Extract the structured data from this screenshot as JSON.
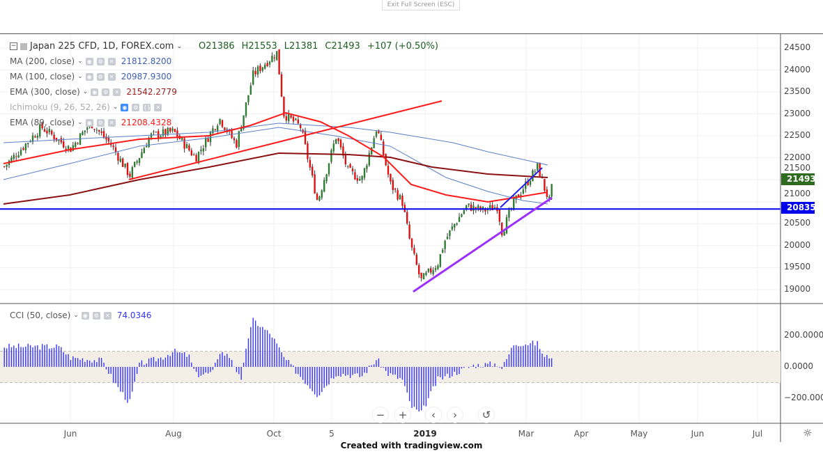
{
  "top": {
    "exit_fullscreen": "Exit Full Screen (ESC)"
  },
  "header": {
    "symbol": "Japan 225 CFD, 1D, FOREX.com",
    "open": "O21386",
    "high": "H21553",
    "low": "L21381",
    "close": "C21493",
    "change": "+107 (+0.50%)"
  },
  "indicators": [
    {
      "name": "MA (200, close)",
      "value": "21812.8200",
      "color": "#3d5fb5"
    },
    {
      "name": "MA (100, close)",
      "value": "20987.9300",
      "color": "#3d5fb5"
    },
    {
      "name": "EMA (300, close)",
      "value": "21542.2779",
      "color": "#9b1c1c"
    },
    {
      "name": "Ichimoku (9, 26, 52, 26)",
      "value": "",
      "color": "#aaaaaa"
    },
    {
      "name": "EMA (89, close)",
      "value": "21208.4328",
      "color": "#ff1a1a"
    }
  ],
  "cci": {
    "name": "CCI (50, close)",
    "value": "74.0346",
    "color": "#3333ff"
  },
  "footer": {
    "credit": "Created with tradingview.com"
  },
  "chart_data": [
    {
      "type": "candlestick",
      "title": "Japan 225 CFD, 1D, FOREX.com",
      "ylim": [
        18800,
        24700
      ],
      "y_ticks": [
        "24500",
        "24000",
        "23500",
        "23000",
        "22500",
        "22000",
        "21500",
        "21000",
        "20500",
        "20000",
        "19500",
        "19000"
      ],
      "x_ticks": [
        "Jun",
        "Aug",
        "Oct",
        "5",
        "2019",
        "Mar",
        "Apr",
        "May",
        "Jun",
        "Jul"
      ],
      "last_price": "21493",
      "horizontal_level": "20835",
      "up_color": "#2e7d32",
      "down_color": "#e01010",
      "closes": [
        [
          "2018-04-23",
          21800
        ],
        [
          "2018-05-15",
          22700
        ],
        [
          "2018-06-01",
          22200
        ],
        [
          "2018-06-13",
          22800
        ],
        [
          "2018-06-25",
          22300
        ],
        [
          "2018-07-06",
          21600
        ],
        [
          "2018-07-18",
          22500
        ],
        [
          "2018-08-01",
          22600
        ],
        [
          "2018-08-14",
          22000
        ],
        [
          "2018-08-28",
          22900
        ],
        [
          "2018-09-07",
          22300
        ],
        [
          "2018-09-17",
          23900
        ],
        [
          "2018-10-01",
          24400
        ],
        [
          "2018-10-05",
          23000
        ],
        [
          "2018-10-15",
          22700
        ],
        [
          "2018-10-25",
          21000
        ],
        [
          "2018-11-05",
          22500
        ],
        [
          "2018-11-12",
          21700
        ],
        [
          "2018-11-20",
          21500
        ],
        [
          "2018-11-29",
          22700
        ],
        [
          "2018-12-07",
          21400
        ],
        [
          "2018-12-14",
          21000
        ],
        [
          "2018-12-19",
          20000
        ],
        [
          "2018-12-25",
          19200
        ],
        [
          "2019-01-04",
          19600
        ],
        [
          "2019-01-08",
          20100
        ],
        [
          "2019-01-14",
          20500
        ],
        [
          "2019-01-21",
          20900
        ],
        [
          "2019-01-31",
          20800
        ],
        [
          "2019-02-08",
          20900
        ],
        [
          "2019-02-11",
          20300
        ],
        [
          "2019-02-18",
          21000
        ],
        [
          "2019-02-25",
          21400
        ],
        [
          "2019-03-04",
          21800
        ],
        [
          "2019-03-08",
          21300
        ],
        [
          "2019-03-11",
          21000
        ],
        [
          "2019-03-13",
          21493
        ]
      ]
    },
    {
      "type": "bar",
      "title": "CCI (50, close)",
      "ylim": [
        -350,
        350
      ],
      "y_ticks": [
        "200.0000",
        "0.0000",
        "−200.0000"
      ],
      "band": [
        -100,
        100
      ],
      "values": [
        [
          "2018-04-23",
          130
        ],
        [
          "2018-05-25",
          130
        ],
        [
          "2018-06-01",
          60
        ],
        [
          "2018-06-20",
          40
        ],
        [
          "2018-06-27",
          -100
        ],
        [
          "2018-07-06",
          -230
        ],
        [
          "2018-07-12",
          20
        ],
        [
          "2018-07-25",
          60
        ],
        [
          "2018-08-01",
          100
        ],
        [
          "2018-08-10",
          70
        ],
        [
          "2018-08-14",
          -50
        ],
        [
          "2018-08-24",
          -40
        ],
        [
          "2018-08-28",
          100
        ],
        [
          "2018-09-04",
          60
        ],
        [
          "2018-09-10",
          -100
        ],
        [
          "2018-09-13",
          150
        ],
        [
          "2018-09-17",
          300
        ],
        [
          "2018-09-28",
          200
        ],
        [
          "2018-10-05",
          60
        ],
        [
          "2018-10-15",
          -60
        ],
        [
          "2018-10-25",
          -180
        ],
        [
          "2018-11-05",
          -40
        ],
        [
          "2018-11-20",
          -60
        ],
        [
          "2018-11-29",
          50
        ],
        [
          "2018-12-05",
          -40
        ],
        [
          "2018-12-14",
          -80
        ],
        [
          "2018-12-19",
          -250
        ],
        [
          "2018-12-25",
          -300
        ],
        [
          "2019-01-04",
          -80
        ],
        [
          "2019-01-14",
          -40
        ],
        [
          "2019-01-25",
          10
        ],
        [
          "2019-02-08",
          20
        ],
        [
          "2019-02-11",
          -10
        ],
        [
          "2019-02-18",
          150
        ],
        [
          "2019-03-04",
          150
        ],
        [
          "2019-03-08",
          60
        ],
        [
          "2019-03-13",
          74
        ]
      ]
    }
  ]
}
